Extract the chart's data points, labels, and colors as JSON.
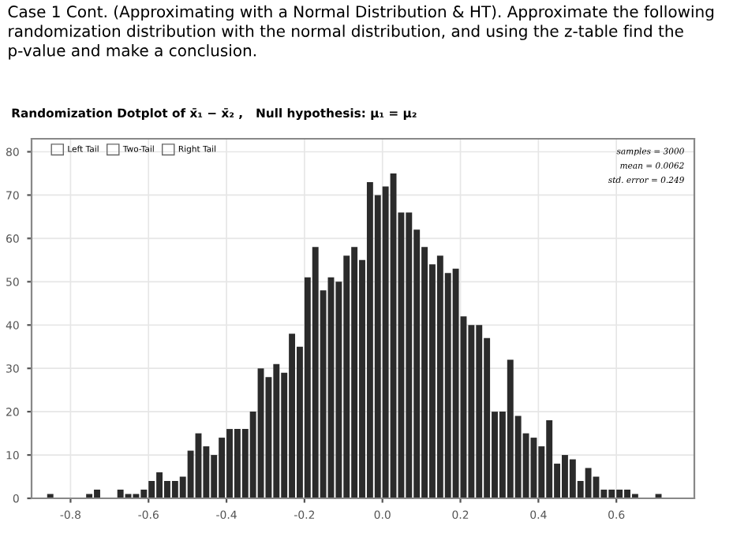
{
  "chart_data": {
    "type": "histogram",
    "title": "Case 1 Cont. (Approximating with a Normal Distribution & HT). Approximate the following randomization distribution with the normal distribution, and using the z-table find the p-value and make a conclusion.",
    "subtitle": "Randomization Dotplot of x̄₁ − x̄₂ ,   Null hypothesis: μ₁ = μ₂",
    "bins": [
      -0.86,
      -0.84,
      -0.82,
      -0.8,
      -0.78,
      -0.76,
      -0.74,
      -0.72,
      -0.7,
      -0.68,
      -0.66,
      -0.64,
      -0.62,
      -0.6,
      -0.58,
      -0.56,
      -0.54,
      -0.52,
      -0.5,
      -0.48,
      -0.46,
      -0.44,
      -0.42,
      -0.4,
      -0.38,
      -0.36,
      -0.34,
      -0.32,
      -0.3,
      -0.28,
      -0.26,
      -0.24,
      -0.22,
      -0.2,
      -0.18,
      -0.16,
      -0.14,
      -0.12,
      -0.1,
      -0.08,
      -0.06,
      -0.04,
      -0.02,
      0.0,
      0.02,
      0.04,
      0.06,
      0.08,
      0.1,
      0.12,
      0.14,
      0.16,
      0.18,
      0.2,
      0.22,
      0.24,
      0.26,
      0.28,
      0.3,
      0.32,
      0.34,
      0.36,
      0.38,
      0.4,
      0.42,
      0.44,
      0.46,
      0.48,
      0.5,
      0.52,
      0.54,
      0.56,
      0.58,
      0.6,
      0.62,
      0.64,
      0.66,
      0.68,
      0.7,
      0.72
    ],
    "values": [
      1,
      0,
      0,
      0,
      0,
      1,
      2,
      0,
      0,
      2,
      1,
      1,
      2,
      4,
      6,
      4,
      4,
      5,
      11,
      15,
      12,
      10,
      14,
      16,
      16,
      16,
      20,
      30,
      28,
      31,
      29,
      38,
      35,
      51,
      58,
      48,
      51,
      50,
      56,
      58,
      55,
      73,
      70,
      72,
      75,
      66,
      66,
      62,
      58,
      54,
      56,
      52,
      53,
      42,
      40,
      40,
      37,
      20,
      20,
      32,
      19,
      15,
      14,
      12,
      18,
      8,
      10,
      9,
      4,
      7,
      5,
      2,
      2,
      2,
      2,
      1,
      0,
      0,
      1
    ],
    "color": "#2b2b2b",
    "xlim": [
      -0.9,
      0.8
    ],
    "ylim": [
      0,
      83
    ],
    "xticks": [
      -0.8,
      -0.6,
      -0.4,
      -0.2,
      {
        "value": 0,
        "label": "0.0"
      },
      0.2,
      0.4,
      0.6
    ],
    "yticks": [
      0,
      10,
      20,
      30,
      40,
      50,
      60,
      70,
      80
    ],
    "grid": true,
    "annotations": [
      "Left Tail",
      "Two-Tail",
      "Right Tail",
      "samples = 3000",
      "mean = 0.0062",
      "std. error = 0.249"
    ]
  }
}
